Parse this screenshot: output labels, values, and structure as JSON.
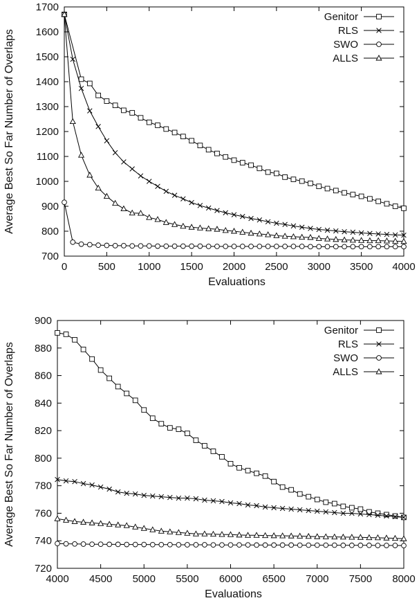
{
  "chart_data": [
    {
      "type": "line",
      "xlabel": "Evaluations",
      "ylabel": "Average Best So Far Number of Overlaps",
      "xlim": [
        0,
        4000
      ],
      "ylim": [
        700,
        1700
      ],
      "xticks": [
        "0",
        "500",
        "1000",
        "1500",
        "2000",
        "2500",
        "3000",
        "3500",
        "4000"
      ],
      "yticks": [
        "700",
        "800",
        "900",
        "1000",
        "1100",
        "1200",
        "1300",
        "1400",
        "1500",
        "1600",
        "1700"
      ],
      "grid": false,
      "legend_position": "top-right",
      "series": [
        {
          "name": "Genitor",
          "marker": "square",
          "x": [
            0,
            200,
            300,
            400,
            500,
            600,
            700,
            800,
            900,
            1000,
            1100,
            1200,
            1300,
            1400,
            1500,
            1600,
            1700,
            1800,
            1900,
            2000,
            2100,
            2200,
            2300,
            2400,
            2500,
            2600,
            2700,
            2800,
            2900,
            3000,
            3100,
            3200,
            3300,
            3400,
            3500,
            3600,
            3700,
            3800,
            3900,
            4000
          ],
          "y": [
            1670,
            1410,
            1393,
            1345,
            1322,
            1305,
            1285,
            1275,
            1255,
            1237,
            1225,
            1210,
            1196,
            1180,
            1163,
            1144,
            1127,
            1112,
            1098,
            1085,
            1075,
            1065,
            1052,
            1037,
            1032,
            1017,
            1008,
            1001,
            992,
            980,
            971,
            963,
            954,
            947,
            940,
            930,
            920,
            910,
            900,
            892
          ]
        },
        {
          "name": "RLS",
          "marker": "x",
          "x": [
            0,
            100,
            200,
            300,
            400,
            500,
            600,
            700,
            800,
            900,
            1000,
            1100,
            1200,
            1300,
            1400,
            1500,
            1600,
            1700,
            1800,
            1900,
            2000,
            2100,
            2200,
            2300,
            2400,
            2500,
            2600,
            2700,
            2800,
            2900,
            3000,
            3100,
            3200,
            3300,
            3400,
            3500,
            3600,
            3700,
            3800,
            3900,
            4000
          ],
          "y": [
            1670,
            1490,
            1373,
            1283,
            1220,
            1163,
            1115,
            1078,
            1050,
            1022,
            1000,
            980,
            960,
            944,
            930,
            915,
            903,
            893,
            883,
            874,
            866,
            859,
            851,
            845,
            838,
            832,
            827,
            821,
            816,
            811,
            807,
            804,
            801,
            798,
            796,
            793,
            791,
            789,
            787,
            785,
            784
          ]
        },
        {
          "name": "SWO",
          "marker": "circle",
          "x": [
            0,
            100,
            200,
            300,
            400,
            500,
            600,
            700,
            800,
            900,
            1000,
            1100,
            1200,
            1300,
            1400,
            1500,
            1600,
            1700,
            1800,
            1900,
            2000,
            2100,
            2200,
            2300,
            2400,
            2500,
            2600,
            2700,
            2800,
            2900,
            3000,
            3100,
            3200,
            3300,
            3400,
            3500,
            3600,
            3700,
            3800,
            3900,
            4000
          ],
          "y": [
            916,
            756,
            748,
            746,
            744,
            743,
            742,
            742,
            741,
            741,
            741,
            740,
            740,
            740,
            740,
            740,
            740,
            739,
            739,
            739,
            739,
            739,
            739,
            739,
            739,
            739,
            739,
            739,
            739,
            738,
            738,
            738,
            738,
            738,
            738,
            738,
            738,
            738,
            738,
            738,
            738
          ]
        },
        {
          "name": "ALLS",
          "marker": "triangle",
          "x": [
            0,
            100,
            200,
            300,
            400,
            500,
            600,
            700,
            800,
            900,
            1000,
            1100,
            1200,
            1300,
            1400,
            1500,
            1600,
            1700,
            1800,
            1900,
            2000,
            2100,
            2200,
            2300,
            2400,
            2500,
            2600,
            2700,
            2800,
            2900,
            3000,
            3100,
            3200,
            3300,
            3400,
            3500,
            3600,
            3700,
            3800,
            3900,
            4000
          ],
          "y": [
            1670,
            1240,
            1105,
            1025,
            973,
            940,
            912,
            890,
            873,
            872,
            855,
            847,
            835,
            827,
            820,
            816,
            813,
            810,
            808,
            803,
            800,
            796,
            792,
            789,
            786,
            782,
            780,
            778,
            776,
            775,
            771,
            769,
            767,
            765,
            764,
            763,
            762,
            762,
            761,
            760,
            759
          ]
        }
      ]
    },
    {
      "type": "line",
      "xlabel": "Evaluations",
      "ylabel": "Average Best So Far Number of Overlaps",
      "xlim": [
        4000,
        8000
      ],
      "ylim": [
        720,
        900
      ],
      "xticks": [
        "4000",
        "4500",
        "5000",
        "5500",
        "6000",
        "6500",
        "7000",
        "7500",
        "8000"
      ],
      "yticks": [
        "720",
        "740",
        "760",
        "780",
        "800",
        "820",
        "840",
        "860",
        "880",
        "900"
      ],
      "grid": false,
      "legend_position": "top-right",
      "series": [
        {
          "name": "Genitor",
          "marker": "square",
          "x": [
            4000,
            4100,
            4200,
            4300,
            4400,
            4500,
            4600,
            4700,
            4800,
            4900,
            5000,
            5100,
            5200,
            5300,
            5400,
            5500,
            5600,
            5700,
            5800,
            5900,
            6000,
            6100,
            6200,
            6300,
            6400,
            6500,
            6600,
            6700,
            6800,
            6900,
            7000,
            7100,
            7200,
            7300,
            7400,
            7500,
            7600,
            7700,
            7800,
            7900,
            8000
          ],
          "y": [
            891,
            890,
            886,
            879,
            872,
            864,
            858,
            852,
            847,
            842,
            835,
            829,
            825,
            822,
            821,
            818,
            813,
            809,
            805,
            801,
            796,
            793,
            791,
            789,
            787,
            783,
            779,
            777,
            774,
            772,
            770,
            768,
            767,
            765,
            764,
            763,
            761,
            760,
            759,
            758,
            757
          ]
        },
        {
          "name": "RLS",
          "marker": "x",
          "x": [
            4000,
            4100,
            4200,
            4300,
            4400,
            4500,
            4600,
            4700,
            4800,
            4900,
            5000,
            5100,
            5200,
            5300,
            5400,
            5500,
            5600,
            5700,
            5800,
            5900,
            6000,
            6100,
            6200,
            6300,
            6400,
            6500,
            6600,
            6700,
            6800,
            6900,
            7000,
            7100,
            7200,
            7300,
            7400,
            7500,
            7600,
            7700,
            7800,
            7900,
            8000
          ],
          "y": [
            784.5,
            783.5,
            783,
            781.5,
            780.5,
            779,
            777.5,
            775.5,
            774.5,
            774,
            773,
            772.5,
            772,
            771.5,
            771,
            771,
            770.5,
            769.5,
            769,
            768.5,
            767.5,
            767,
            766,
            765.5,
            764.5,
            764,
            763.5,
            763,
            762.5,
            762,
            761.5,
            761,
            760.5,
            760,
            760,
            759.5,
            759,
            758.5,
            758,
            757.5,
            757
          ]
        },
        {
          "name": "SWO",
          "marker": "circle",
          "x": [
            4000,
            4100,
            4200,
            4300,
            4400,
            4500,
            4600,
            4700,
            4800,
            4900,
            5000,
            5100,
            5200,
            5300,
            5400,
            5500,
            5600,
            5700,
            5800,
            5900,
            6000,
            6100,
            6200,
            6300,
            6400,
            6500,
            6600,
            6700,
            6800,
            6900,
            7000,
            7100,
            7200,
            7300,
            7400,
            7500,
            7600,
            7700,
            7800,
            7900,
            8000
          ],
          "y": [
            738,
            737.8,
            737.7,
            737.6,
            737.5,
            737.5,
            737.4,
            737.4,
            737.3,
            737.3,
            737.3,
            737.2,
            737.2,
            737.2,
            737.1,
            737.1,
            737.1,
            737.1,
            737,
            737,
            737,
            737,
            737,
            736.9,
            736.9,
            736.9,
            736.9,
            736.9,
            736.8,
            736.8,
            736.8,
            736.8,
            736.8,
            736.7,
            736.7,
            736.7,
            736.7,
            736.6,
            736.6,
            736.6,
            736.5
          ]
        },
        {
          "name": "ALLS",
          "marker": "triangle",
          "x": [
            4000,
            4100,
            4200,
            4300,
            4400,
            4500,
            4600,
            4700,
            4800,
            4900,
            5000,
            5100,
            5200,
            5300,
            5400,
            5500,
            5600,
            5700,
            5800,
            5900,
            6000,
            6100,
            6200,
            6300,
            6400,
            6500,
            6600,
            6700,
            6800,
            6900,
            7000,
            7100,
            7200,
            7300,
            7400,
            7500,
            7600,
            7700,
            7800,
            7900,
            8000
          ],
          "y": [
            756,
            755,
            754,
            753.5,
            753,
            752.5,
            752,
            751.5,
            751,
            750,
            749,
            748,
            747,
            746.5,
            746,
            745.5,
            745,
            745,
            744.8,
            744.6,
            744.5,
            744.2,
            744,
            744,
            743.8,
            743.7,
            743.6,
            743.5,
            743.4,
            743.2,
            743,
            742.9,
            742.8,
            742.7,
            742.6,
            742.5,
            742.3,
            742.2,
            742,
            741.8,
            741.5
          ]
        }
      ]
    }
  ]
}
